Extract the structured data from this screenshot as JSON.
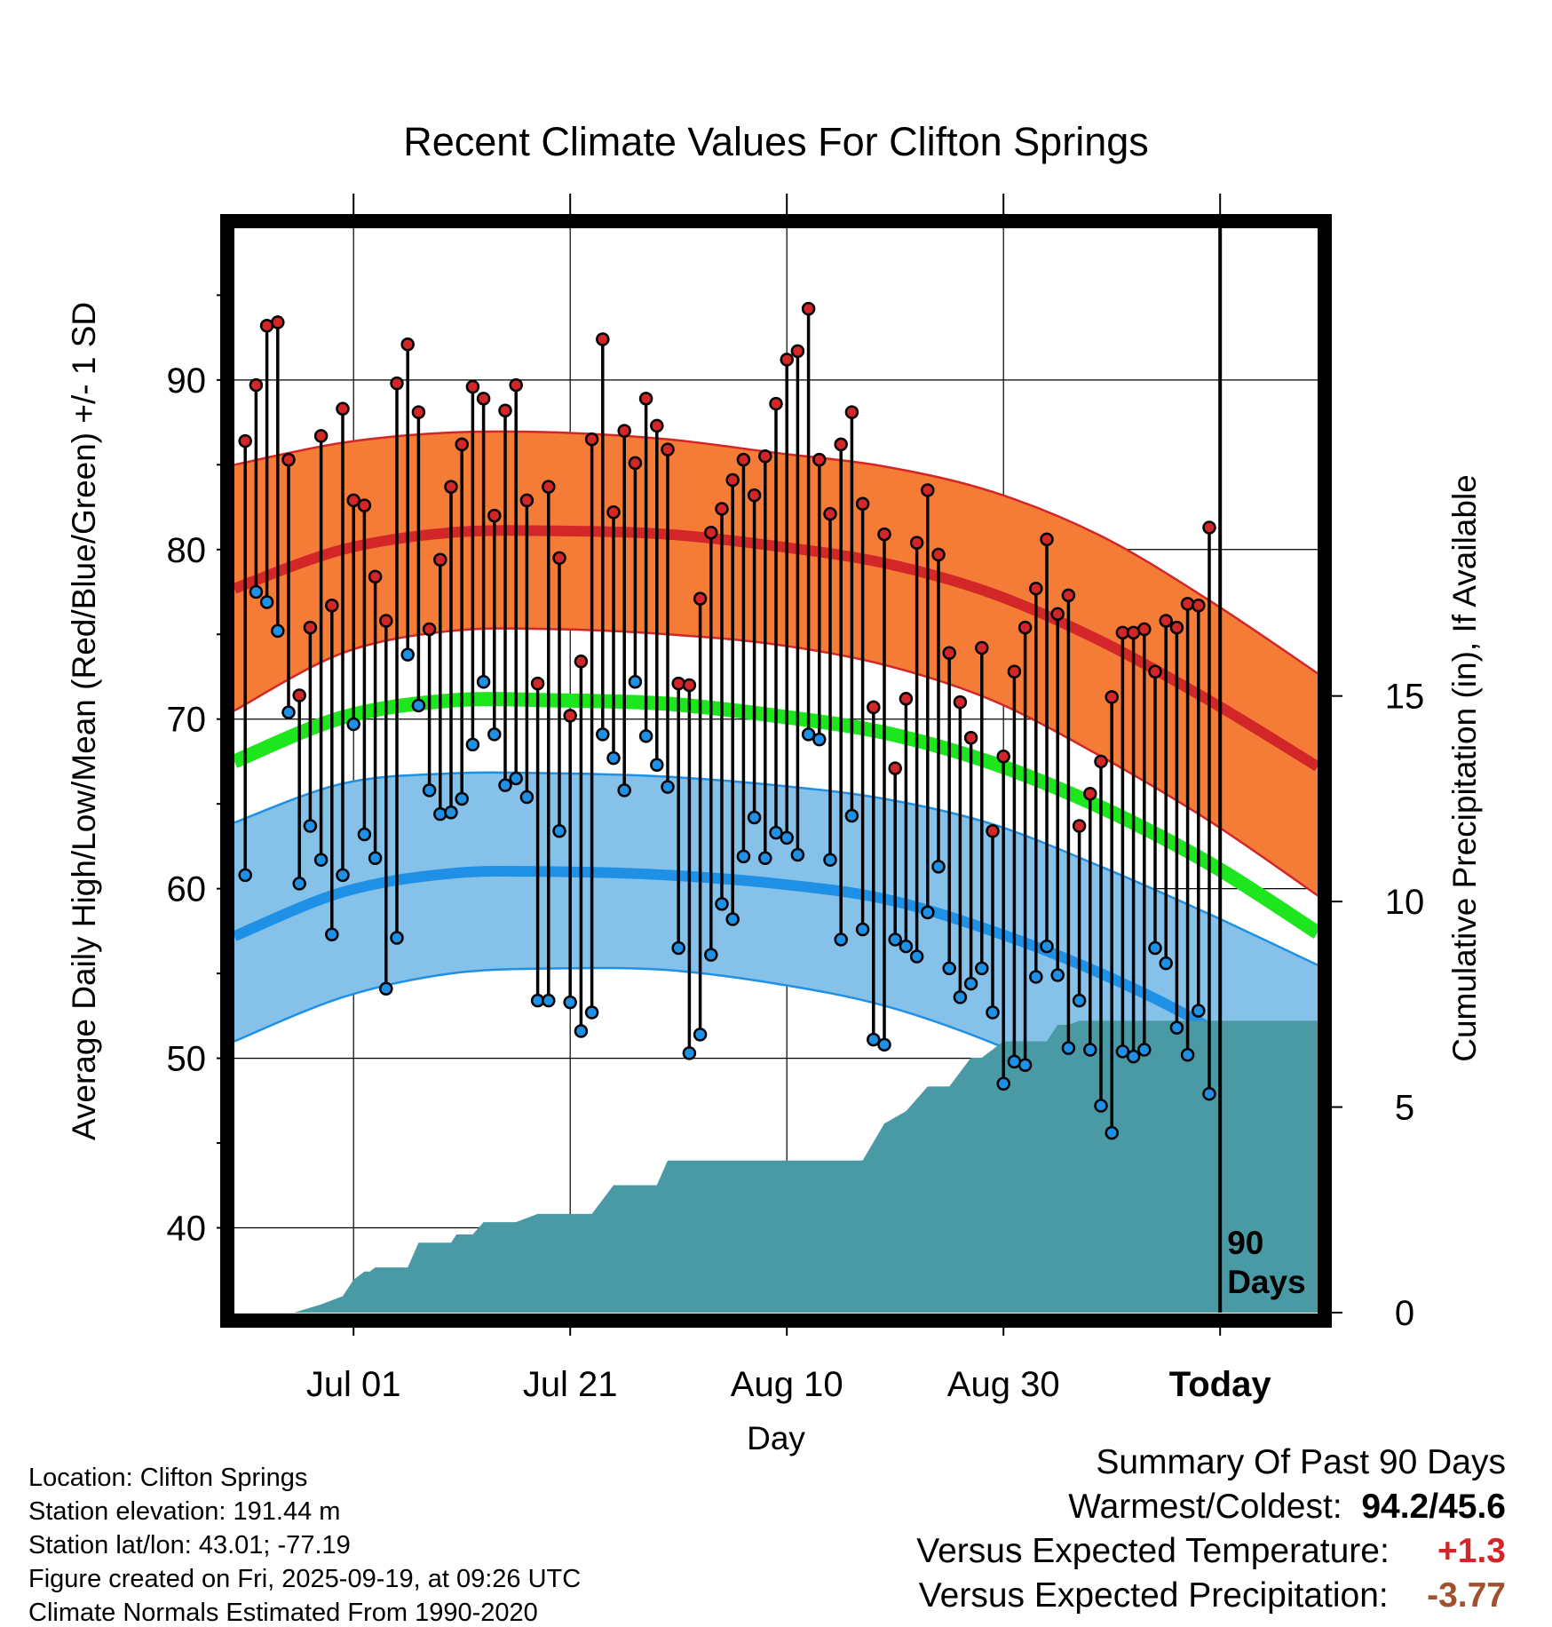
{
  "chart_data": {
    "type": "line",
    "title": "Recent Climate Values For Clifton Springs",
    "xlabel": "Day",
    "ylabel": "Average Daily High/Low/Mean (Red/Blue/Green) +/- 1 SD",
    "y2label": "Cumulative Precipitation (in), If Available",
    "ylim": [
      35,
      99
    ],
    "y2lim": [
      0,
      26.4
    ],
    "yticks": [
      40,
      50,
      60,
      70,
      80,
      90
    ],
    "yticklabels": [
      "40",
      "50",
      "60",
      "70",
      "80",
      "90"
    ],
    "y2ticks": [
      0,
      5,
      10,
      15
    ],
    "y2ticklabels": [
      "0",
      "5",
      "10",
      "15"
    ],
    "xlim": [
      0,
      100
    ],
    "xticks": [
      11,
      31,
      51,
      71,
      91
    ],
    "xticklabels": [
      "Jul 01",
      "Jul 21",
      "Aug 10",
      "Aug 30",
      "Today"
    ],
    "x_axis_unit": "days since Jun 20",
    "today_index": 91,
    "today_marker_label": [
      "90",
      "Days"
    ],
    "day_index": [
      1,
      2,
      3,
      4,
      5,
      6,
      7,
      8,
      9,
      10,
      11,
      12,
      13,
      14,
      15,
      16,
      17,
      18,
      19,
      20,
      21,
      22,
      23,
      24,
      25,
      26,
      27,
      28,
      29,
      30,
      31,
      32,
      33,
      34,
      35,
      36,
      37,
      38,
      39,
      40,
      41,
      42,
      43,
      44,
      45,
      46,
      47,
      48,
      49,
      50,
      51,
      52,
      53,
      54,
      55,
      56,
      57,
      58,
      59,
      60,
      61,
      62,
      63,
      64,
      65,
      66,
      67,
      68,
      69,
      70,
      71,
      72,
      73,
      74,
      75,
      76,
      77,
      78,
      79,
      80,
      81,
      82,
      83,
      84,
      85,
      86,
      87,
      88,
      89,
      90
    ],
    "series": [
      {
        "name": "Daily High",
        "color": "#d22628",
        "values": [
          86.4,
          89.7,
          93.2,
          93.4,
          85.3,
          71.4,
          75.4,
          86.7,
          76.7,
          88.3,
          82.9,
          82.6,
          78.4,
          75.8,
          89.8,
          92.1,
          88.1,
          75.3,
          79.4,
          83.7,
          86.2,
          89.6,
          88.9,
          82.0,
          88.2,
          89.7,
          82.9,
          72.1,
          83.7,
          79.5,
          70.2,
          73.4,
          86.5,
          92.4,
          82.2,
          87.0,
          85.1,
          88.9,
          87.3,
          85.9,
          72.1,
          72.0,
          77.1,
          81.0,
          82.4,
          84.1,
          85.3,
          83.2,
          85.5,
          88.6,
          91.2,
          91.7,
          94.2,
          85.3,
          82.1,
          86.2,
          88.1,
          82.7,
          70.7,
          80.9,
          67.1,
          71.2,
          80.4,
          83.5,
          79.7,
          73.9,
          71.0,
          68.9,
          74.2,
          63.4,
          67.8,
          72.8,
          75.4,
          77.7,
          80.6,
          76.2,
          77.3,
          63.7,
          65.6,
          67.5,
          71.3,
          75.1,
          75.1,
          75.3,
          72.8,
          75.8,
          75.4,
          76.8,
          76.7,
          81.3
        ]
      },
      {
        "name": "Daily Low",
        "color": "#1e90e6",
        "values": [
          60.8,
          77.5,
          76.9,
          75.2,
          70.4,
          60.3,
          63.7,
          61.7,
          57.3,
          60.8,
          69.7,
          63.2,
          61.8,
          54.1,
          57.1,
          73.8,
          70.8,
          65.8,
          64.4,
          64.5,
          65.3,
          68.5,
          72.2,
          69.1,
          66.1,
          66.5,
          65.4,
          53.4,
          53.4,
          63.4,
          53.3,
          51.6,
          52.7,
          69.1,
          67.7,
          65.8,
          72.2,
          69.0,
          67.3,
          66.0,
          56.5,
          50.3,
          51.4,
          56.1,
          59.1,
          58.2,
          61.9,
          64.2,
          61.8,
          63.3,
          63.0,
          62.0,
          69.1,
          68.8,
          61.7,
          57.0,
          64.3,
          57.6,
          51.1,
          50.8,
          57.0,
          56.6,
          56.0,
          58.6,
          61.3,
          55.3,
          53.6,
          54.4,
          55.3,
          52.7,
          48.5,
          49.8,
          49.6,
          54.8,
          56.6,
          54.9,
          50.6,
          53.4,
          50.5,
          47.2,
          45.6,
          50.4,
          50.1,
          50.5,
          56.5,
          55.6,
          51.8,
          50.2,
          52.8,
          47.9
        ]
      }
    ],
    "normals": {
      "x": [
        0,
        10,
        20,
        30,
        40,
        50,
        60,
        70,
        80,
        90,
        100
      ],
      "high_mean": [
        77.7,
        80.0,
        81.0,
        81.1,
        80.9,
        80.2,
        79.2,
        77.4,
        74.6,
        71.1,
        67.2
      ],
      "high_upper": [
        85.0,
        86.3,
        86.9,
        86.9,
        86.5,
        85.7,
        84.9,
        83.4,
        80.8,
        77.0,
        72.7
      ],
      "high_lower": [
        70.5,
        73.9,
        75.2,
        75.3,
        75.0,
        74.4,
        73.2,
        71.1,
        67.8,
        64.0,
        59.6
      ],
      "mean": [
        67.5,
        70.1,
        71.1,
        71.1,
        70.9,
        70.2,
        69.2,
        67.4,
        64.8,
        61.5,
        57.4
      ],
      "low_mean": [
        57.2,
        59.8,
        60.9,
        61.0,
        60.8,
        60.3,
        59.4,
        57.5,
        55.0,
        51.8,
        47.5
      ],
      "low_upper": [
        63.9,
        66.2,
        66.8,
        66.8,
        66.6,
        66.1,
        65.3,
        63.8,
        61.3,
        58.5,
        55.5
      ],
      "low_lower": [
        51.0,
        53.6,
        55.0,
        55.3,
        55.2,
        54.4,
        53.1,
        50.9,
        48.0,
        44.6,
        40.6
      ]
    },
    "cumulative_precipitation": {
      "color": "#4a9aa5",
      "x": [
        5.5,
        8,
        10,
        11,
        12,
        12.5,
        13,
        16,
        17,
        20,
        20.5,
        22,
        23,
        26,
        28,
        33,
        35,
        39,
        40,
        45,
        48,
        53,
        58,
        60,
        62,
        64,
        66,
        68,
        69,
        71,
        72,
        73,
        74,
        75,
        76,
        77,
        78,
        79,
        80,
        81,
        82,
        100
      ],
      "y": [
        0,
        0.2,
        0.4,
        0.8,
        1.0,
        1.0,
        1.1,
        1.1,
        1.7,
        1.7,
        1.9,
        1.9,
        2.2,
        2.2,
        2.4,
        2.4,
        3.1,
        3.1,
        3.7,
        3.7,
        3.7,
        3.7,
        3.7,
        4.6,
        4.9,
        5.5,
        5.5,
        6.2,
        6.2,
        6.6,
        6.6,
        6.6,
        6.6,
        6.6,
        7.0,
        7.0,
        7.1,
        7.1,
        7.1,
        7.1,
        7.1,
        7.1
      ]
    }
  },
  "footer": {
    "location": "Location: Clifton Springs",
    "elevation": "Station elevation: 191.44 m",
    "latlon": "Station lat/lon: 43.01; -77.19",
    "created": "Figure created on Fri, 2025-09-19, at 09:26 UTC",
    "normals": "Climate Normals Estimated From 1990-2020"
  },
  "summary": {
    "title": "Summary Of Past 90 Days",
    "warmest_coldest_label": "Warmest/Coldest:",
    "warmest_coldest_value": "94.2/45.6",
    "temp_label": "Versus Expected Temperature:",
    "temp_value": "+1.3",
    "temp_color": "#d22628",
    "precip_label": "Versus Expected Precipitation:",
    "precip_value": "-3.77",
    "precip_color": "#a0522d"
  }
}
